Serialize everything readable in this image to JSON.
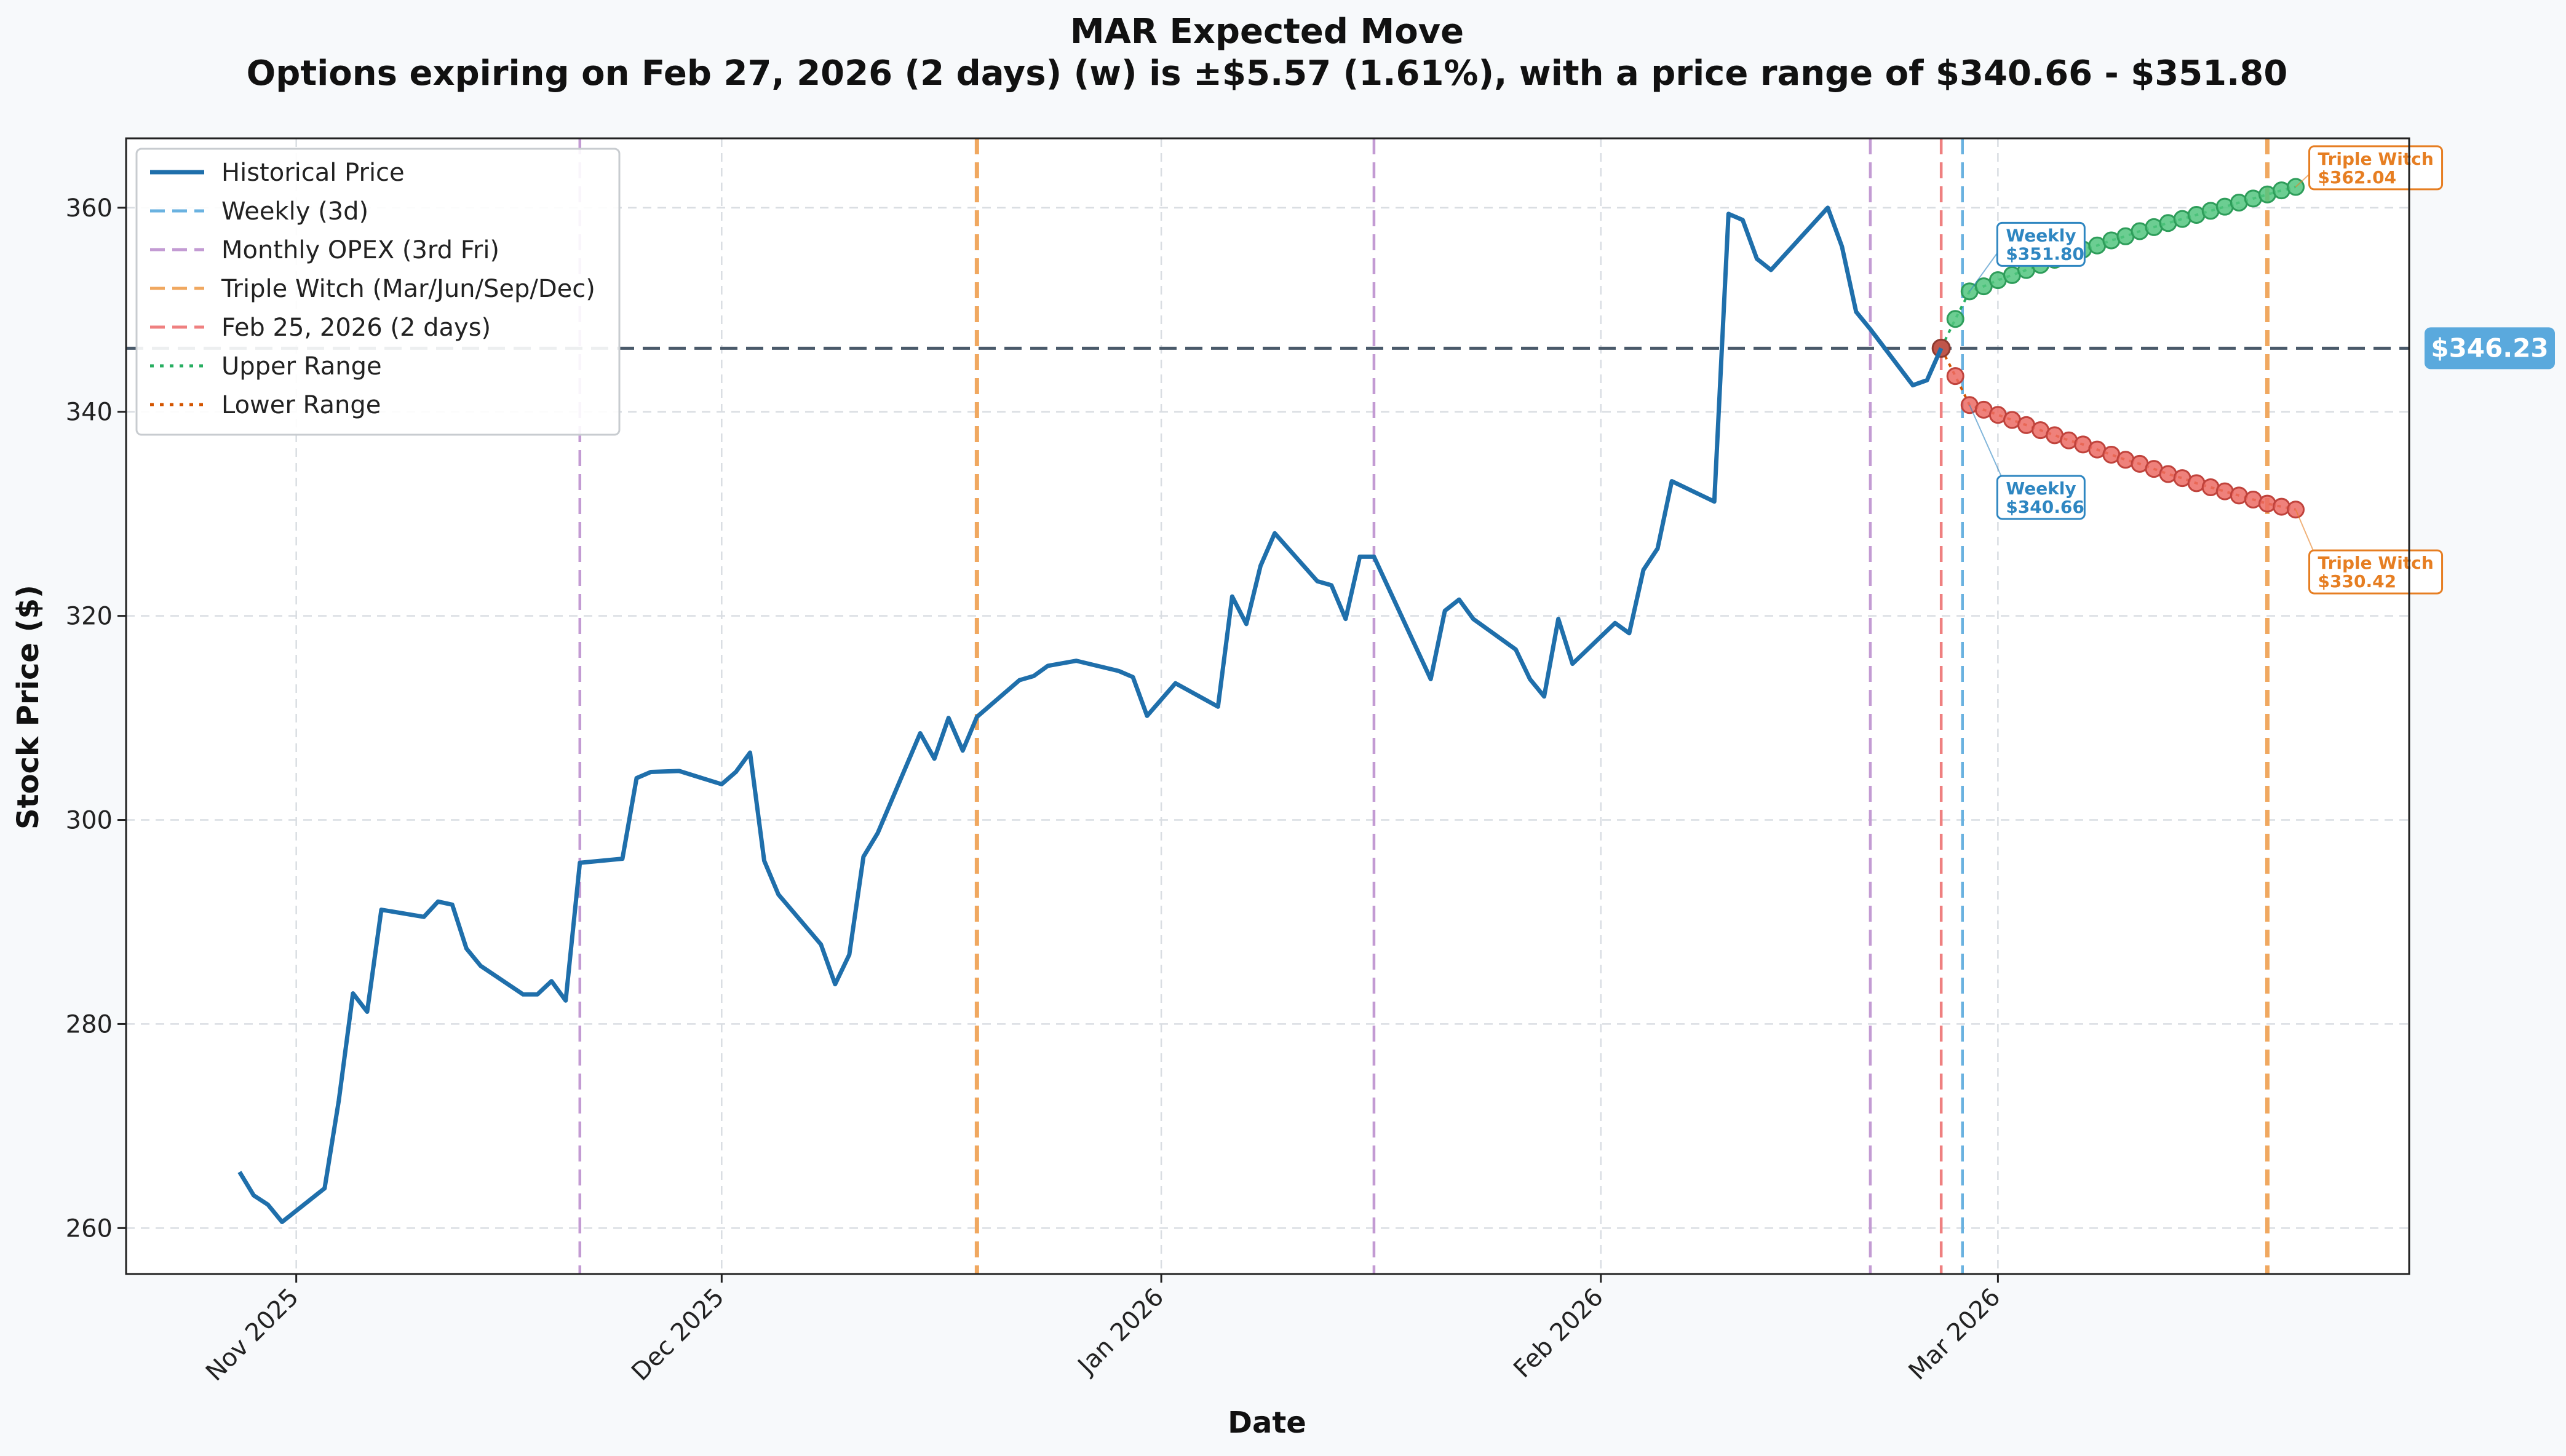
{
  "chart_data": {
    "type": "line",
    "title": "MAR Expected Move",
    "subtitle": "Options expiring on Feb 27, 2026 (2 days) (w) is ±$5.57 (1.61%), with a price range of $340.66 - $351.80",
    "xlabel": "Date",
    "ylabel": "Stock Price ($)",
    "ylim": [
      255.5,
      366.8
    ],
    "xlim": [
      "2025-10-20",
      "2026-03-30"
    ],
    "x_ticks": [
      {
        "date": "2025-11-01",
        "label": "Nov 2025"
      },
      {
        "date": "2025-12-01",
        "label": "Dec 2025"
      },
      {
        "date": "2026-01-01",
        "label": "Jan 2026"
      },
      {
        "date": "2026-02-01",
        "label": "Feb 2026"
      },
      {
        "date": "2026-03-01",
        "label": "Mar 2026"
      }
    ],
    "y_ticks": [
      260,
      280,
      300,
      320,
      340,
      360
    ],
    "grid": true,
    "legend_position": "top-left",
    "legend": [
      {
        "label": "Historical Price",
        "color": "#1f6fab",
        "style": "solid"
      },
      {
        "label": "Weekly (3d)",
        "color": "#6ab2e0",
        "style": "dashed"
      },
      {
        "label": "Monthly OPEX (3rd Fri)",
        "color": "#c39bd3",
        "style": "dashed"
      },
      {
        "label": "Triple Witch (Mar/Jun/Sep/Dec)",
        "color": "#f0a860",
        "style": "dashed"
      },
      {
        "label": "Feb 25, 2026 (2 days)",
        "color": "#ef8080",
        "style": "dashed"
      },
      {
        "label": "Upper Range",
        "color": "#27ae60",
        "style": "dotted"
      },
      {
        "label": "Lower Range",
        "color": "#d35400",
        "style": "dotted"
      }
    ],
    "historical": [
      [
        "2025-10-28",
        265.5
      ],
      [
        "2025-10-29",
        263.2
      ],
      [
        "2025-10-30",
        262.3
      ],
      [
        "2025-10-31",
        260.6
      ],
      [
        "2025-11-03",
        263.9
      ],
      [
        "2025-11-04",
        272.5
      ],
      [
        "2025-11-05",
        283.0
      ],
      [
        "2025-11-06",
        281.2
      ],
      [
        "2025-11-07",
        291.2
      ],
      [
        "2025-11-10",
        290.5
      ],
      [
        "2025-11-11",
        292.0
      ],
      [
        "2025-11-12",
        291.7
      ],
      [
        "2025-11-13",
        287.4
      ],
      [
        "2025-11-14",
        285.7
      ],
      [
        "2025-11-17",
        282.9
      ],
      [
        "2025-11-18",
        282.9
      ],
      [
        "2025-11-19",
        284.2
      ],
      [
        "2025-11-20",
        282.3
      ],
      [
        "2025-11-21",
        295.8
      ],
      [
        "2025-11-24",
        296.2
      ],
      [
        "2025-11-25",
        304.1
      ],
      [
        "2025-11-26",
        304.7
      ],
      [
        "2025-11-28",
        304.8
      ],
      [
        "2025-12-01",
        303.5
      ],
      [
        "2025-12-02",
        304.7
      ],
      [
        "2025-12-03",
        306.6
      ],
      [
        "2025-12-04",
        296.0
      ],
      [
        "2025-12-05",
        292.7
      ],
      [
        "2025-12-08",
        287.8
      ],
      [
        "2025-12-09",
        283.9
      ],
      [
        "2025-12-10",
        286.8
      ],
      [
        "2025-12-11",
        296.4
      ],
      [
        "2025-12-12",
        298.7
      ],
      [
        "2025-12-15",
        308.5
      ],
      [
        "2025-12-16",
        306.0
      ],
      [
        "2025-12-17",
        310.0
      ],
      [
        "2025-12-18",
        306.8
      ],
      [
        "2025-12-19",
        310.1
      ],
      [
        "2025-12-22",
        313.7
      ],
      [
        "2025-12-23",
        314.1
      ],
      [
        "2025-12-24",
        315.1
      ],
      [
        "2025-12-26",
        315.6
      ],
      [
        "2025-12-29",
        314.6
      ],
      [
        "2025-12-30",
        314.0
      ],
      [
        "2025-12-31",
        310.2
      ],
      [
        "2026-01-02",
        313.4
      ],
      [
        "2026-01-05",
        311.1
      ],
      [
        "2026-01-06",
        321.9
      ],
      [
        "2026-01-07",
        319.2
      ],
      [
        "2026-01-08",
        324.9
      ],
      [
        "2026-01-09",
        328.1
      ],
      [
        "2026-01-12",
        323.4
      ],
      [
        "2026-01-13",
        323.0
      ],
      [
        "2026-01-14",
        319.7
      ],
      [
        "2026-01-15",
        325.8
      ],
      [
        "2026-01-16",
        325.8
      ],
      [
        "2026-01-20",
        313.8
      ],
      [
        "2026-01-21",
        320.5
      ],
      [
        "2026-01-22",
        321.6
      ],
      [
        "2026-01-23",
        319.7
      ],
      [
        "2026-01-26",
        316.7
      ],
      [
        "2026-01-27",
        313.8
      ],
      [
        "2026-01-28",
        312.1
      ],
      [
        "2026-01-29",
        319.7
      ],
      [
        "2026-01-30",
        315.3
      ],
      [
        "2026-02-02",
        319.3
      ],
      [
        "2026-02-03",
        318.3
      ],
      [
        "2026-02-04",
        324.5
      ],
      [
        "2026-02-05",
        326.6
      ],
      [
        "2026-02-06",
        333.2
      ],
      [
        "2026-02-09",
        331.2
      ],
      [
        "2026-02-10",
        359.4
      ],
      [
        "2026-02-11",
        358.8
      ],
      [
        "2026-02-12",
        355.0
      ],
      [
        "2026-02-13",
        353.9
      ],
      [
        "2026-02-17",
        360.0
      ],
      [
        "2026-02-18",
        356.2
      ],
      [
        "2026-02-19",
        349.8
      ],
      [
        "2026-02-20",
        348.1
      ],
      [
        "2026-02-23",
        342.6
      ],
      [
        "2026-02-24",
        343.1
      ],
      [
        "2026-02-25",
        346.23
      ]
    ],
    "vertical_lines": [
      {
        "date": "2025-11-21",
        "kind": "monthly",
        "color": "#c39bd3"
      },
      {
        "date": "2025-12-19",
        "kind": "triple",
        "color": "#f0a860"
      },
      {
        "date": "2026-01-16",
        "kind": "monthly",
        "color": "#c39bd3"
      },
      {
        "date": "2026-02-20",
        "kind": "monthly",
        "color": "#c39bd3"
      },
      {
        "date": "2026-02-25",
        "kind": "today",
        "color": "#ef8080"
      },
      {
        "date": "2026-02-26.5",
        "kind": "weekly",
        "color": "#6ab2e0"
      },
      {
        "date": "2026-03-20",
        "kind": "triple",
        "color": "#f0a860"
      }
    ],
    "current_price": {
      "value": 346.23,
      "label": "$346.23",
      "color": "#5aa9dd"
    },
    "upper_points": [
      [
        "2026-02-25",
        346.23
      ],
      [
        "2026-02-26",
        349.1
      ],
      [
        "2026-02-27",
        351.8
      ],
      [
        "2026-02-28",
        352.3
      ],
      [
        "2026-03-01",
        352.9
      ],
      [
        "2026-03-02",
        353.4
      ],
      [
        "2026-03-03",
        353.9
      ],
      [
        "2026-03-04",
        354.4
      ],
      [
        "2026-03-05",
        354.9
      ],
      [
        "2026-03-06",
        355.4
      ],
      [
        "2026-03-07",
        355.9
      ],
      [
        "2026-03-08",
        356.3
      ],
      [
        "2026-03-09",
        356.8
      ],
      [
        "2026-03-10",
        357.2
      ],
      [
        "2026-03-11",
        357.7
      ],
      [
        "2026-03-12",
        358.1
      ],
      [
        "2026-03-13",
        358.5
      ],
      [
        "2026-03-14",
        358.9
      ],
      [
        "2026-03-15",
        359.3
      ],
      [
        "2026-03-16",
        359.7
      ],
      [
        "2026-03-17",
        360.1
      ],
      [
        "2026-03-18",
        360.5
      ],
      [
        "2026-03-19",
        360.9
      ],
      [
        "2026-03-20",
        361.3
      ],
      [
        "2026-03-21",
        361.7
      ],
      [
        "2026-03-22",
        362.04
      ]
    ],
    "lower_points": [
      [
        "2026-02-25",
        346.23
      ],
      [
        "2026-02-26",
        343.5
      ],
      [
        "2026-02-27",
        340.66
      ],
      [
        "2026-02-28",
        340.2
      ],
      [
        "2026-03-01",
        339.7
      ],
      [
        "2026-03-02",
        339.2
      ],
      [
        "2026-03-03",
        338.7
      ],
      [
        "2026-03-04",
        338.2
      ],
      [
        "2026-03-05",
        337.7
      ],
      [
        "2026-03-06",
        337.2
      ],
      [
        "2026-03-07",
        336.8
      ],
      [
        "2026-03-08",
        336.3
      ],
      [
        "2026-03-09",
        335.8
      ],
      [
        "2026-03-10",
        335.3
      ],
      [
        "2026-03-11",
        334.9
      ],
      [
        "2026-03-12",
        334.4
      ],
      [
        "2026-03-13",
        333.9
      ],
      [
        "2026-03-14",
        333.5
      ],
      [
        "2026-03-15",
        333.0
      ],
      [
        "2026-03-16",
        332.6
      ],
      [
        "2026-03-17",
        332.2
      ],
      [
        "2026-03-18",
        331.8
      ],
      [
        "2026-03-19",
        331.4
      ],
      [
        "2026-03-20",
        331.0
      ],
      [
        "2026-03-21",
        330.7
      ],
      [
        "2026-03-22",
        330.42
      ]
    ],
    "annotations": [
      {
        "id": "weekly-upper",
        "line1": "Weekly",
        "line2": "$351.80",
        "color": "#2e86c1",
        "anchor": [
          "2026-02-27",
          351.8
        ],
        "box_at": [
          "2026-02-28",
          358.4
        ]
      },
      {
        "id": "weekly-lower",
        "line1": "Weekly",
        "line2": "$340.66",
        "color": "#2e86c1",
        "anchor": [
          "2026-02-27",
          340.66
        ],
        "box_at": [
          "2026-02-28",
          333.6
        ]
      },
      {
        "id": "triple-upper",
        "line1": "Triple Witch",
        "line2": "$362.04",
        "color": "#e67e22",
        "anchor": [
          "2026-03-22",
          362.04
        ],
        "box_at": [
          "2026-03-22",
          365.9
        ]
      },
      {
        "id": "triple-lower",
        "line1": "Triple Witch",
        "line2": "$330.42",
        "color": "#e67e22",
        "anchor": [
          "2026-03-22",
          330.42
        ],
        "box_at": [
          "2026-03-22",
          326.3
        ]
      }
    ]
  }
}
